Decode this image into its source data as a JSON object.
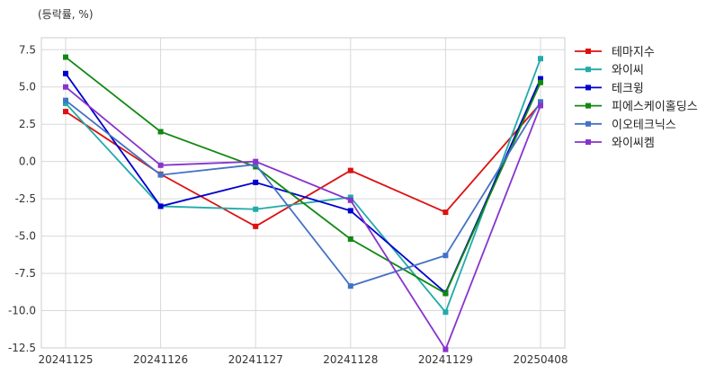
{
  "chart_data": {
    "type": "line",
    "unit_label": "(등락률, %)",
    "x": [
      "20241125",
      "20241126",
      "20241127",
      "20241128",
      "20241129",
      "20250408"
    ],
    "ylim": [
      -12.5,
      8.3
    ],
    "yticks": [
      7.5,
      5.0,
      2.5,
      0.0,
      -2.5,
      -5.0,
      -7.5,
      -10.0,
      -12.5
    ],
    "ytick_labels": [
      "7.5",
      "5.0",
      "2.5",
      "0.0",
      "-2.5",
      "-5.0",
      "-7.5",
      "-10.0",
      "-12.5"
    ],
    "grid": true,
    "legend_position": "right",
    "series": [
      {
        "name": "테마지수",
        "color": "#dd1111",
        "values": [
          3.35,
          -0.85,
          -4.35,
          -0.6,
          -3.4,
          3.9
        ]
      },
      {
        "name": "와이씨",
        "color": "#22aaaa",
        "values": [
          3.9,
          -3.0,
          -3.2,
          -2.4,
          -10.1,
          6.9
        ]
      },
      {
        "name": "테크윙",
        "color": "#0000cc",
        "values": [
          5.9,
          -3.0,
          -1.4,
          -3.3,
          -8.8,
          5.55
        ]
      },
      {
        "name": "피에스케이홀딩스",
        "color": "#118811",
        "values": [
          7.0,
          2.0,
          -0.35,
          -5.2,
          -8.85,
          5.3
        ]
      },
      {
        "name": "이오테크닉스",
        "color": "#4472c4",
        "values": [
          4.1,
          -0.9,
          -0.2,
          -8.35,
          -6.3,
          4.0
        ]
      },
      {
        "name": "와이씨켐",
        "color": "#8833cc",
        "values": [
          5.0,
          -0.25,
          0.0,
          -2.6,
          -12.6,
          3.75
        ]
      }
    ]
  }
}
